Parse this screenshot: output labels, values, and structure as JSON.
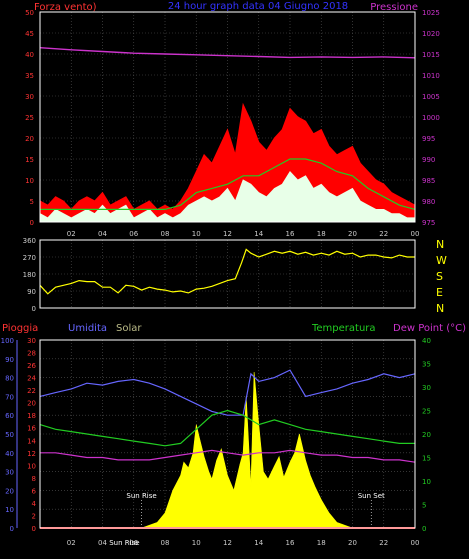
{
  "header": {
    "left_label": "Forza vento)",
    "title": "24 hour graph data  04 Giugno 2018",
    "right_label": "Pressione"
  },
  "colors": {
    "wind_gust": "#ff0000",
    "wind_avg": "#e8ffe8",
    "wind_mid": "#22cc22",
    "pressure": "#cc33cc",
    "direction": "#ffff00",
    "humidity": "#6666ff",
    "temperature": "#22cc22",
    "dew_point": "#cc33cc",
    "rain": "#ff3333",
    "solar": "#ffff00",
    "axis_frame": "#ffffff",
    "grid": "#555555",
    "tick_text": "#cccccc",
    "left_axis_wind": "#ff3333",
    "right_axis_pressure": "#cc33cc",
    "left_axis_humidity": "#6666ff",
    "right_axis_temp": "#22cc22"
  },
  "chart_data": [
    {
      "type": "line",
      "name": "wind-pressure",
      "y_left_ticks": [
        "0",
        "5",
        "10",
        "15",
        "20",
        "25",
        "30",
        "35",
        "40",
        "45",
        "50"
      ],
      "y_right_ticks": [
        "975",
        "980",
        "985",
        "990",
        "995",
        "1000",
        "1005",
        "1010",
        "1015",
        "1020",
        "1025"
      ],
      "x_ticks": [
        "02",
        "04",
        "06",
        "08",
        "10",
        "12",
        "14",
        "16",
        "18",
        "20",
        "22",
        "00"
      ],
      "ylim_left": [
        0,
        50
      ],
      "ylim_right": [
        975,
        1025
      ],
      "xlim": [
        0,
        24
      ],
      "series": [
        {
          "key": "gust",
          "x": [
            0,
            0.5,
            1,
            1.5,
            2,
            2.5,
            3,
            3.5,
            4,
            4.5,
            5,
            5.5,
            6,
            6.5,
            7,
            7.5,
            8,
            8.5,
            9,
            9.5,
            10,
            10.5,
            11,
            11.5,
            12,
            12.5,
            13,
            13.5,
            14,
            14.5,
            15,
            15.5,
            16,
            16.5,
            17,
            17.5,
            18,
            18.5,
            19,
            19.5,
            20,
            20.5,
            21,
            21.5,
            22,
            22.5,
            23,
            23.5,
            24
          ],
          "y": [
            5,
            4,
            6,
            5,
            3,
            5,
            6,
            5,
            7,
            4,
            5,
            6,
            3,
            4,
            5,
            3,
            4,
            3,
            5,
            8,
            12,
            16,
            14,
            18,
            22,
            16,
            28,
            24,
            19,
            17,
            20,
            22,
            27,
            25,
            24,
            21,
            22,
            18,
            16,
            17,
            18,
            14,
            12,
            10,
            9,
            7,
            6,
            5,
            4
          ]
        },
        {
          "key": "mid",
          "x": [
            0,
            1,
            2,
            3,
            4,
            5,
            6,
            7,
            8,
            9,
            10,
            11,
            12,
            13,
            14,
            15,
            16,
            17,
            18,
            19,
            20,
            21,
            22,
            23,
            24
          ],
          "y": [
            3,
            3,
            3,
            3,
            3,
            3,
            3,
            3,
            3,
            4,
            7,
            8,
            9,
            11,
            11,
            13,
            15,
            15,
            14,
            12,
            11,
            8,
            6,
            4,
            3
          ]
        },
        {
          "key": "avg",
          "x": [
            0,
            0.5,
            1,
            1.5,
            2,
            2.5,
            3,
            3.5,
            4,
            4.5,
            5,
            5.5,
            6,
            6.5,
            7,
            7.5,
            8,
            8.5,
            9,
            9.5,
            10,
            10.5,
            11,
            11.5,
            12,
            12.5,
            13,
            13.5,
            14,
            14.5,
            15,
            15.5,
            16,
            16.5,
            17,
            17.5,
            18,
            18.5,
            19,
            19.5,
            20,
            20.5,
            21,
            21.5,
            22,
            22.5,
            23,
            23.5,
            24
          ],
          "y": [
            2,
            1,
            3,
            2,
            1,
            2,
            3,
            2,
            4,
            2,
            3,
            4,
            1,
            2,
            3,
            1,
            2,
            1,
            2,
            4,
            5,
            6,
            5,
            6,
            8,
            5,
            10,
            9,
            7,
            6,
            8,
            9,
            12,
            10,
            11,
            8,
            9,
            7,
            6,
            7,
            8,
            5,
            4,
            3,
            3,
            2,
            2,
            1,
            1
          ]
        },
        {
          "key": "pressure",
          "x": [
            0,
            2,
            4,
            6,
            8,
            10,
            12,
            14,
            16,
            18,
            20,
            22,
            24
          ],
          "y": [
            1016.5,
            1016,
            1015.6,
            1015.2,
            1015,
            1014.8,
            1014.6,
            1014.4,
            1014.2,
            1014.3,
            1014.2,
            1014.3,
            1014.1
          ]
        }
      ]
    },
    {
      "type": "line",
      "name": "wind-direction",
      "y_ticks": [
        "0",
        "90",
        "180",
        "270",
        "360"
      ],
      "right_labels": [
        "N",
        "W",
        "S",
        "E",
        "N"
      ],
      "ylim": [
        0,
        360
      ],
      "xlim": [
        0,
        24
      ],
      "x": [
        0,
        0.5,
        1,
        1.5,
        2,
        2.5,
        3,
        3.5,
        4,
        4.5,
        5,
        5.5,
        6,
        6.5,
        7,
        7.5,
        8,
        8.5,
        9,
        9.5,
        10,
        10.5,
        11,
        11.5,
        12,
        12.5,
        12.9,
        13.2,
        13.5,
        14,
        14.5,
        15,
        15.5,
        16,
        16.5,
        17,
        17.5,
        18,
        18.5,
        19,
        19.5,
        20,
        20.5,
        21,
        21.5,
        22,
        22.5,
        23,
        23.5,
        24
      ],
      "y": [
        120,
        75,
        110,
        120,
        130,
        145,
        140,
        140,
        110,
        110,
        80,
        120,
        115,
        95,
        110,
        100,
        95,
        85,
        90,
        80,
        100,
        105,
        115,
        130,
        145,
        155,
        240,
        310,
        290,
        270,
        285,
        300,
        290,
        300,
        285,
        295,
        280,
        290,
        280,
        300,
        285,
        290,
        270,
        280,
        280,
        270,
        265,
        280,
        270,
        270
      ]
    },
    {
      "type": "line",
      "name": "rain-humidity-solar-temp",
      "legend": [
        "Pioggia",
        "Umidita",
        "Solar",
        "Temperatura",
        "Dew Point (°C)"
      ],
      "y_left_rain_ticks": [
        "0",
        "2",
        "4",
        "6",
        "8",
        "10",
        "12",
        "14",
        "16",
        "18",
        "20",
        "22",
        "24",
        "26",
        "28",
        "30"
      ],
      "y_left_hum_ticks": [
        "0",
        "10",
        "20",
        "30",
        "40",
        "50",
        "60",
        "70",
        "80",
        "90",
        "100"
      ],
      "y_right_ticks": [
        "0",
        "5",
        "10",
        "15",
        "20",
        "25",
        "30",
        "35",
        "40"
      ],
      "ylim_humidity": [
        0,
        100
      ],
      "ylim_temp": [
        0,
        40
      ],
      "xlim": [
        0,
        24
      ],
      "annotations": [
        "Sun Rise",
        "Sun Set",
        "Sun Rise"
      ],
      "humidity": {
        "x": [
          0,
          1,
          2,
          3,
          4,
          5,
          6,
          7,
          8,
          9,
          10,
          11,
          12,
          13,
          13.5,
          14,
          15,
          16,
          17,
          18,
          19,
          20,
          21,
          22,
          23,
          24
        ],
        "y": [
          70,
          72,
          74,
          77,
          76,
          78,
          79,
          77,
          74,
          70,
          66,
          62,
          60,
          60,
          82,
          78,
          80,
          84,
          70,
          72,
          74,
          77,
          79,
          82,
          80,
          82
        ]
      },
      "temperature": {
        "x": [
          0,
          1,
          2,
          3,
          4,
          5,
          6,
          7,
          8,
          9,
          10,
          11,
          12,
          13,
          14,
          15,
          16,
          17,
          18,
          19,
          20,
          21,
          22,
          23,
          24
        ],
        "y": [
          22,
          21,
          20.5,
          20,
          19.5,
          19,
          18.5,
          18,
          17.5,
          18,
          21,
          24,
          25,
          24,
          22,
          23,
          22,
          21,
          20.5,
          20,
          19.5,
          19,
          18.5,
          18,
          18
        ]
      },
      "dew_point": {
        "x": [
          0,
          1,
          2,
          3,
          4,
          5,
          6,
          7,
          8,
          9,
          10,
          11,
          12,
          13,
          14,
          15,
          16,
          17,
          18,
          19,
          20,
          21,
          22,
          23,
          24
        ],
        "y": [
          16,
          16,
          15.5,
          15,
          15,
          14.5,
          14.5,
          14.5,
          15,
          15.5,
          16,
          16.5,
          16,
          15.5,
          16,
          16,
          16.5,
          16,
          15.5,
          15.5,
          15,
          15,
          14.5,
          14.5,
          14
        ]
      },
      "solar": {
        "x": [
          0,
          6.5,
          7.5,
          8,
          8.5,
          9,
          9.2,
          9.5,
          9.8,
          10,
          10.2,
          10.5,
          10.8,
          11,
          11.3,
          11.6,
          12,
          12.4,
          12.8,
          13,
          13.2,
          13.5,
          13.7,
          14,
          14.3,
          14.6,
          15,
          15.3,
          15.6,
          16,
          16.3,
          16.6,
          17,
          17.3,
          17.6,
          18,
          18.5,
          19,
          20,
          24
        ],
        "y": [
          0,
          0,
          3,
          8,
          20,
          28,
          35,
          32,
          40,
          55,
          48,
          38,
          30,
          26,
          36,
          42,
          28,
          20,
          34,
          40,
          70,
          22,
          83,
          55,
          30,
          26,
          33,
          38,
          27,
          35,
          40,
          50,
          36,
          28,
          22,
          15,
          8,
          3,
          0,
          0
        ]
      },
      "rain": {
        "x": [
          0,
          24
        ],
        "y": [
          0,
          0
        ]
      }
    }
  ]
}
